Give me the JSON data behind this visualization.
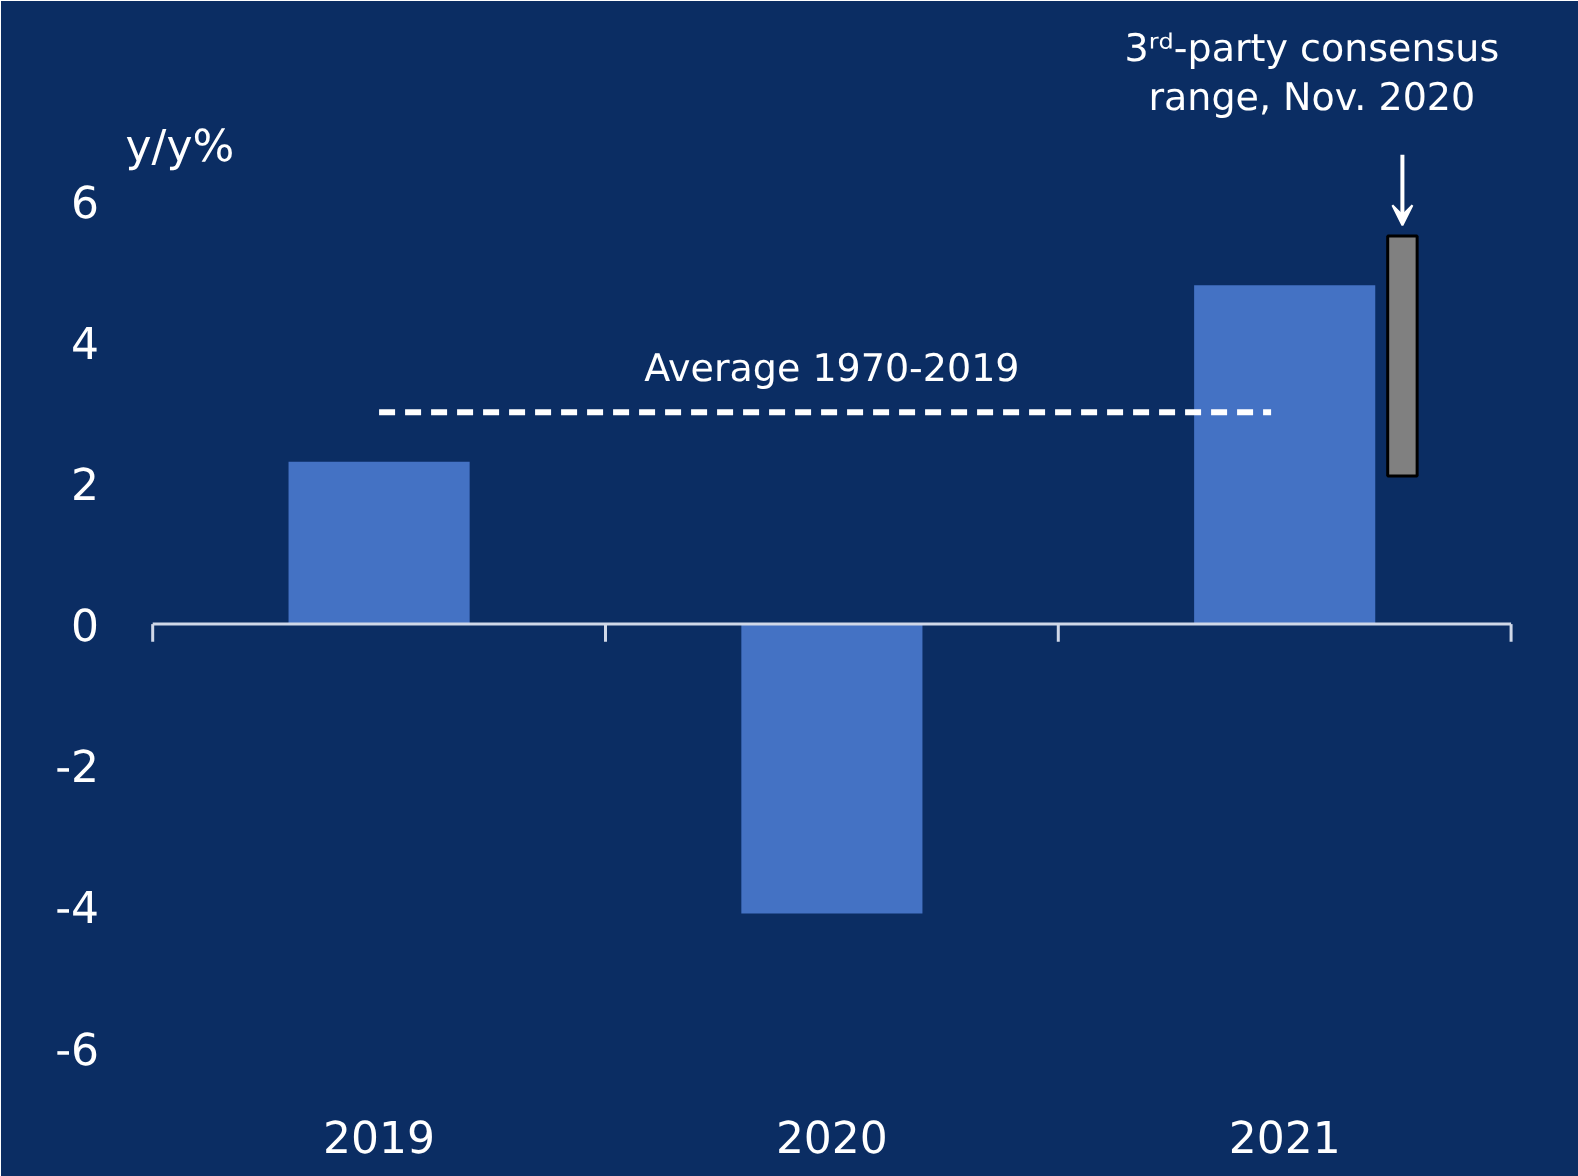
{
  "chart_data": {
    "type": "bar",
    "ylabel": "y/y%",
    "categories": [
      "2019",
      "2020",
      "2021"
    ],
    "series": [
      {
        "color": "#4472c4",
        "values": [
          2.3,
          -4.1,
          4.8
        ]
      },
      {
        "color": "#808080",
        "values": [
          null,
          null,
          3.4
        ],
        "base": [
          null,
          null,
          2.1
        ]
      }
    ],
    "ylim": [
      -6.7,
      8.8
    ],
    "yticks": [
      -6,
      -4,
      -2,
      0,
      2,
      4,
      6
    ],
    "ref_lines": [
      {
        "axis": "y",
        "value": 3.0,
        "label": "Average 1970-2019",
        "color": "#ffffff",
        "line_style": "dashed"
      }
    ],
    "annotations": [
      "3ʳᵈ-party consensus range, Nov. 2020"
    ]
  }
}
